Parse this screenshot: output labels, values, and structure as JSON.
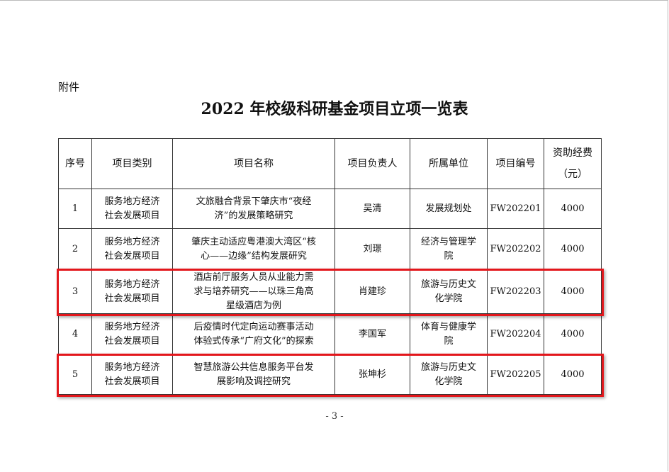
{
  "attachment_label": "附件",
  "title": "2022 年校级科研基金项目立项一览表",
  "columns": [
    [
      "序号"
    ],
    [
      "项目类别"
    ],
    [
      "项目名称"
    ],
    [
      "项目负责人"
    ],
    [
      "所属单位"
    ],
    [
      "项目编号"
    ],
    [
      "资助经费",
      "（元）"
    ]
  ],
  "rows": [
    {
      "no": "1",
      "category": [
        "服务地方经济",
        "社会发展项目"
      ],
      "name": [
        "文旅融合背景下肇庆市“夜经",
        "济”的发展策略研究"
      ],
      "leader": "吴清",
      "unit": [
        "发展规划处"
      ],
      "code": "FW202201",
      "fund": "4000",
      "highlighted": false
    },
    {
      "no": "2",
      "category": [
        "服务地方经济",
        "社会发展项目"
      ],
      "name": [
        "肇庆主动适应粤港澳大湾区“核",
        "心——边缘”结构发展研究"
      ],
      "leader": "刘璟",
      "unit": [
        "经济与管理学",
        "院"
      ],
      "code": "FW202202",
      "fund": "4000",
      "highlighted": false
    },
    {
      "no": "3",
      "category": [
        "服务地方经济",
        "社会发展项目"
      ],
      "name": [
        "酒店前厅服务人员从业能力需",
        "求与培养研究——以珠三角高",
        "星级酒店为例"
      ],
      "leader": "肖建珍",
      "unit": [
        "旅游与历史文",
        "化学院"
      ],
      "code": "FW202203",
      "fund": "4000",
      "highlighted": true
    },
    {
      "no": "4",
      "category": [
        "服务地方经济",
        "社会发展项目"
      ],
      "name": [
        "后疫情时代定向运动赛事活动",
        "体验式传承“广府文化”的探索"
      ],
      "leader": "李国军",
      "unit": [
        "体育与健康学",
        "院"
      ],
      "code": "FW202204",
      "fund": "4000",
      "highlighted": false
    },
    {
      "no": "5",
      "category": [
        "服务地方经济",
        "社会发展项目"
      ],
      "name": [
        "智慧旅游公共信息服务平台发",
        "展影响及调控研究"
      ],
      "leader": "张坤杉",
      "unit": [
        "旅游与历史文",
        "化学院"
      ],
      "code": "FW202205",
      "fund": "4000",
      "highlighted": true
    }
  ],
  "page_number": "- 3 -",
  "colors": {
    "highlight": "#e3161b"
  }
}
